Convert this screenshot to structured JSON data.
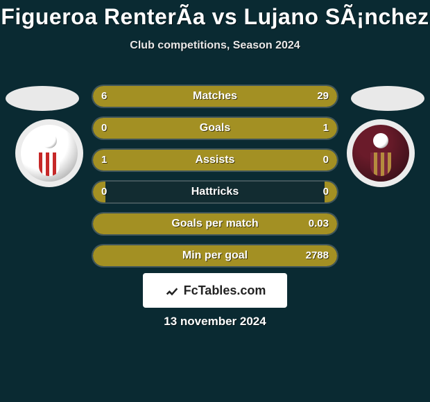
{
  "colors": {
    "background": "#0a2a32",
    "title_text": "#ffffff",
    "subtitle_text": "#e8e8e8",
    "track_bg": "#122c31",
    "bar_left_fill": "#a39023",
    "bar_right_fill": "#a39023",
    "bar_label_text": "#ffffff",
    "bar_value_text": "#ffffff",
    "flag_bg": "#e9e9e9",
    "crest_bg": "#ececec",
    "footer_bg": "#ffffff",
    "footer_text": "#222222",
    "date_text": "#ffffff"
  },
  "title": "Figueroa RenterÃ­a vs Lujano SÃ¡nchez",
  "title_fontsize": 32,
  "subtitle": "Club competitions, Season 2024",
  "subtitle_fontsize": 16,
  "footer_label": "FcTables.com",
  "date_text": "13 november 2024",
  "rows": [
    {
      "label": "Matches",
      "left": "6",
      "right": "29",
      "left_pct": 17.1,
      "right_pct": 82.9
    },
    {
      "label": "Goals",
      "left": "0",
      "right": "1",
      "left_pct": 5.0,
      "right_pct": 95.0
    },
    {
      "label": "Assists",
      "left": "1",
      "right": "0",
      "left_pct": 95.0,
      "right_pct": 5.0
    },
    {
      "label": "Hattricks",
      "left": "0",
      "right": "0",
      "left_pct": 5.0,
      "right_pct": 5.0
    },
    {
      "label": "Goals per match",
      "left": "",
      "right": "0.03",
      "left_pct": 5.0,
      "right_pct": 95.0
    },
    {
      "label": "Min per goal",
      "left": "",
      "right": "2788",
      "left_pct": 5.0,
      "right_pct": 95.0
    }
  ]
}
